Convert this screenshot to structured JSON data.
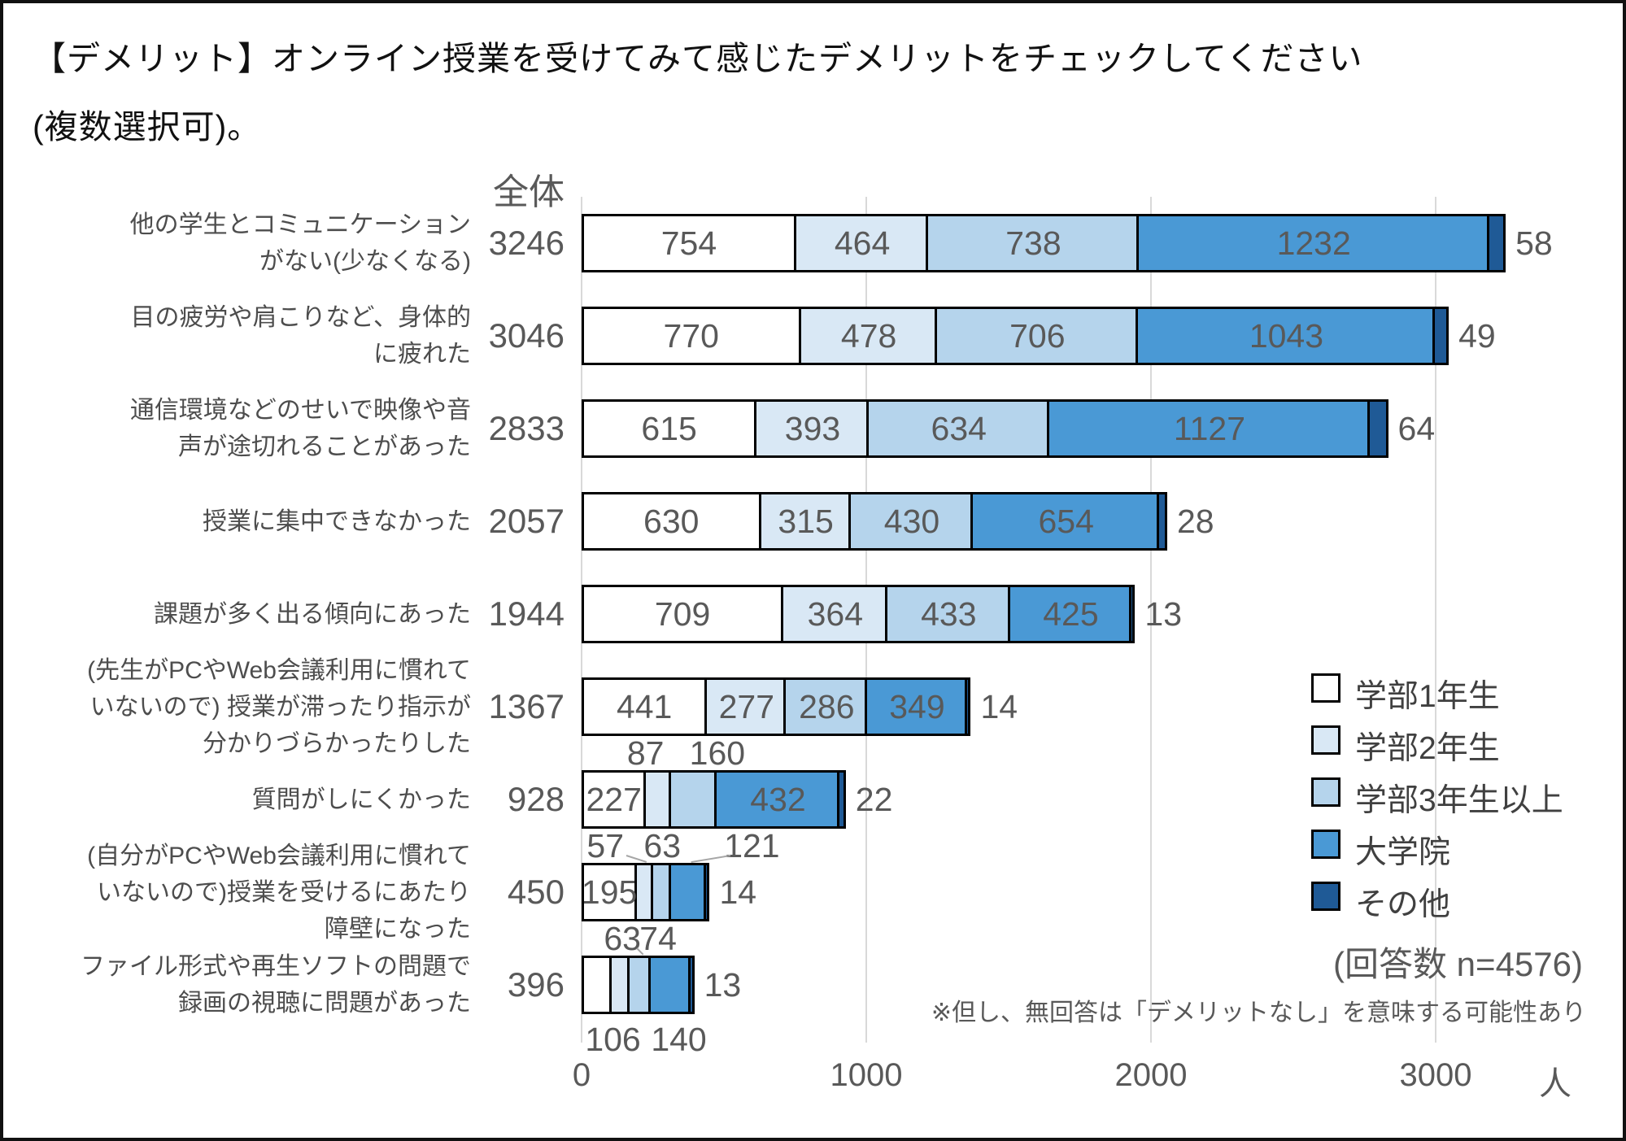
{
  "title": {
    "line1": "【デメリット】オンライン授業を受けてみて感じたデメリットをチェックしてください",
    "line2": "(複数選択可)。"
  },
  "header": {
    "total_label": "全体"
  },
  "legend": {
    "respondents": "(回答数 n=4576)"
  },
  "notes": {
    "caveat": "※但し、無回答は「デメリットなし」を意味する可能性あり"
  },
  "colors": {
    "bar_border": "#000000",
    "gridline": "#d9d9d9",
    "number_text": "#595959",
    "label_text": "#4d4d4d"
  },
  "chart_data": {
    "type": "bar",
    "stacked": true,
    "orientation": "horizontal",
    "title": "【デメリット】オンライン授業を受けてみて感じたデメリットをチェックしてください(複数選択可)。",
    "xlabel": "人",
    "x_unit": "人",
    "x_ticks": [
      "0",
      "1000",
      "2000",
      "3000"
    ],
    "x_tick_values": [
      0,
      1000,
      2000,
      3000
    ],
    "xlim": [
      0,
      3680
    ],
    "grid": true,
    "legend_position": "right-bottom",
    "series": [
      {
        "name": "学部1年生",
        "color": "#ffffff"
      },
      {
        "name": "学部2年生",
        "color": "#d9e8f5"
      },
      {
        "name": "学部3年生以上",
        "color": "#b5d4ec"
      },
      {
        "name": "大学院",
        "color": "#4a99d5"
      },
      {
        "name": "その他",
        "color": "#1f5a96"
      }
    ],
    "rows": [
      {
        "label_lines": [
          "他の学生とコミュニケーション",
          "がない(少なくなる)"
        ],
        "total": 3246,
        "values": [
          754,
          464,
          738,
          1232,
          58
        ],
        "pos": [
          "in",
          "in",
          "in",
          "in",
          "right"
        ]
      },
      {
        "label_lines": [
          "目の疲労や肩こりなど、身体的",
          "に疲れた"
        ],
        "total": 3046,
        "values": [
          770,
          478,
          706,
          1043,
          49
        ],
        "pos": [
          "in",
          "in",
          "in",
          "in",
          "right"
        ]
      },
      {
        "label_lines": [
          "通信環境などのせいで映像や音",
          "声が途切れることがあった"
        ],
        "total": 2833,
        "values": [
          615,
          393,
          634,
          1127,
          64
        ],
        "pos": [
          "in",
          "in",
          "in",
          "in",
          "right"
        ]
      },
      {
        "label_lines": [
          "授業に集中できなかった"
        ],
        "total": 2057,
        "values": [
          630,
          315,
          430,
          654,
          28
        ],
        "pos": [
          "in",
          "in",
          "in",
          "in",
          "right"
        ]
      },
      {
        "label_lines": [
          "課題が多く出る傾向にあった"
        ],
        "total": 1944,
        "values": [
          709,
          364,
          433,
          425,
          13
        ],
        "pos": [
          "in",
          "in",
          "in",
          "in",
          "right"
        ]
      },
      {
        "label_lines": [
          "(先生がPCやWeb会議利用に慣れて",
          "いないので) 授業が滞ったり指示が",
          "分かりづらかったりした"
        ],
        "total": 1367,
        "values": [
          441,
          277,
          286,
          349,
          14
        ],
        "pos": [
          "in",
          "in",
          "in",
          "in",
          "right"
        ]
      },
      {
        "label_lines": [
          "質問がしにくかった"
        ],
        "total": 928,
        "values": [
          227,
          87,
          160,
          432,
          22
        ],
        "pos": [
          "in",
          "above",
          "above",
          "in",
          "right"
        ],
        "dx": [
          0,
          -16,
          29,
          0,
          0
        ]
      },
      {
        "label_lines": [
          "(自分がPCやWeb会議利用に慣れて",
          "いないので)授業を受けるにあたり",
          "障壁になった"
        ],
        "total": 450,
        "values": [
          195,
          57,
          63,
          121,
          14
        ],
        "pos": [
          "in",
          "above",
          "above",
          "above",
          "right"
        ],
        "dx": [
          0,
          -49,
          0,
          78,
          0
        ],
        "leader": [
          false,
          true,
          false,
          true,
          false
        ]
      },
      {
        "label_lines": [
          "ファイル形式や再生ソフトの問題で",
          "録画の視聴に問題があった"
        ],
        "total": 396,
        "values": [
          106,
          63,
          74,
          140,
          13
        ],
        "pos": [
          "below",
          "above",
          "above",
          "below",
          "right"
        ],
        "dx": [
          20,
          2,
          22,
          10,
          0
        ],
        "leader": [
          false,
          false,
          true,
          false,
          false
        ]
      }
    ]
  }
}
